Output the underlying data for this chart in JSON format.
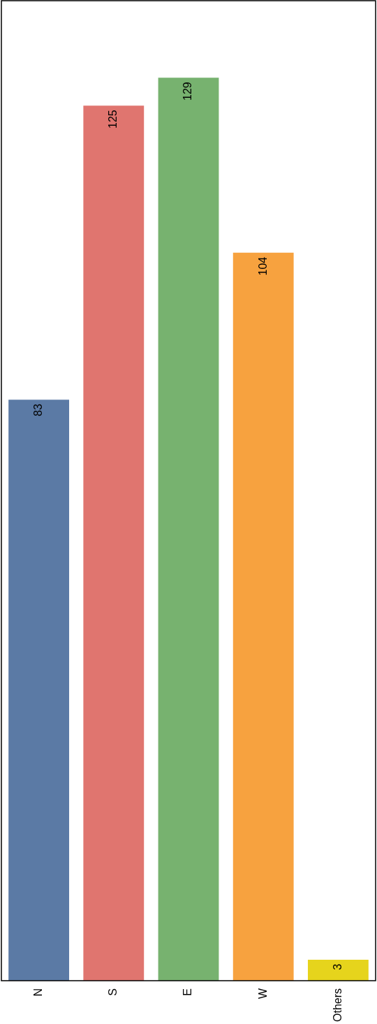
{
  "chart_data": {
    "type": "bar",
    "categories": [
      "N",
      "S",
      "E",
      "W",
      "Others"
    ],
    "values": [
      83,
      125,
      129,
      104,
      3
    ],
    "colors": [
      "#5b7aa5",
      "#e0756f",
      "#77b26f",
      "#f7a23f",
      "#e6d41c"
    ],
    "data_labels": true,
    "grid": false,
    "legend": false
  }
}
